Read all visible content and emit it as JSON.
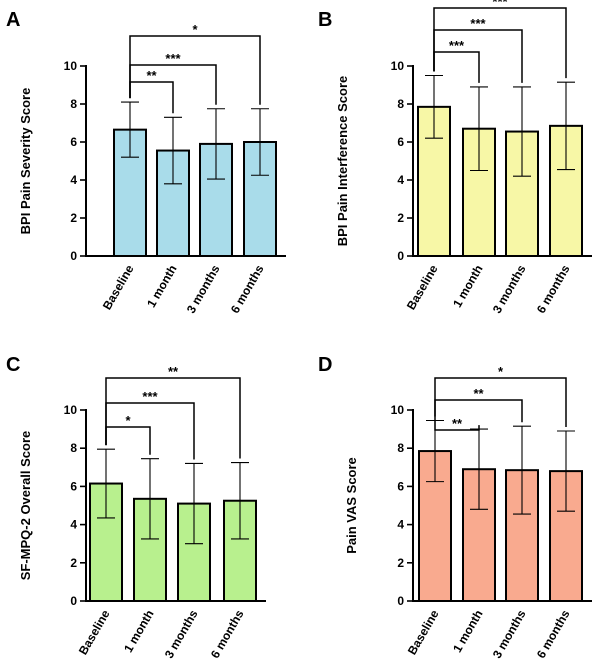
{
  "chart_data": [
    {
      "panel": "A",
      "type": "bar",
      "ylabel": "BPI Pain Severity Score",
      "categories": [
        "Baseline",
        "1 month",
        "3 months",
        "6 months"
      ],
      "values": [
        6.65,
        5.55,
        5.9,
        6.0
      ],
      "error": [
        1.45,
        1.75,
        1.85,
        1.75
      ],
      "ylim": [
        0,
        10
      ],
      "yticks": [
        "0",
        "2",
        "4",
        "6",
        "8",
        "10"
      ],
      "bar_color": "#a9dcea",
      "significance": [
        {
          "from": 0,
          "to": 1,
          "label": "**"
        },
        {
          "from": 0,
          "to": 2,
          "label": "***"
        },
        {
          "from": 0,
          "to": 3,
          "label": "*"
        }
      ]
    },
    {
      "panel": "B",
      "type": "bar",
      "ylabel": "BPI Pain Interference Score",
      "categories": [
        "Baseline",
        "1 month",
        "3 months",
        "6 months"
      ],
      "values": [
        7.85,
        6.7,
        6.55,
        6.85
      ],
      "error": [
        1.65,
        2.2,
        2.35,
        2.3
      ],
      "ylim": [
        0,
        10
      ],
      "yticks": [
        "0",
        "2",
        "4",
        "6",
        "8",
        "10"
      ],
      "bar_color": "#f7f7a6",
      "significance": [
        {
          "from": 0,
          "to": 1,
          "label": "***"
        },
        {
          "from": 0,
          "to": 2,
          "label": "***"
        },
        {
          "from": 0,
          "to": 3,
          "label": "***"
        }
      ]
    },
    {
      "panel": "C",
      "type": "bar",
      "ylabel": "SF-MPQ-2 Overall Score",
      "categories": [
        "Baseline",
        "1 month",
        "3 months",
        "6 months"
      ],
      "values": [
        6.15,
        5.35,
        5.1,
        5.25
      ],
      "error": [
        1.8,
        2.1,
        2.1,
        2.0
      ],
      "ylim": [
        0,
        10
      ],
      "yticks": [
        "0",
        "2",
        "4",
        "6",
        "8",
        "10"
      ],
      "bar_color": "#b8f08e",
      "significance": [
        {
          "from": 0,
          "to": 1,
          "label": "*"
        },
        {
          "from": 0,
          "to": 2,
          "label": "***"
        },
        {
          "from": 0,
          "to": 3,
          "label": "**"
        }
      ]
    },
    {
      "panel": "D",
      "type": "bar",
      "ylabel": "Pain VAS Score",
      "categories": [
        "Baseline",
        "1 month",
        "3 months",
        "6 months"
      ],
      "values": [
        7.85,
        6.9,
        6.85,
        6.8
      ],
      "error": [
        1.6,
        2.1,
        2.3,
        2.1
      ],
      "ylim": [
        0,
        10
      ],
      "yticks": [
        "0",
        "2",
        "4",
        "6",
        "8",
        "10"
      ],
      "bar_color": "#f9aa8f",
      "significance": [
        {
          "from": 0,
          "to": 1,
          "label": "**"
        },
        {
          "from": 0,
          "to": 2,
          "label": "**"
        },
        {
          "from": 0,
          "to": 3,
          "label": "*"
        }
      ]
    }
  ]
}
